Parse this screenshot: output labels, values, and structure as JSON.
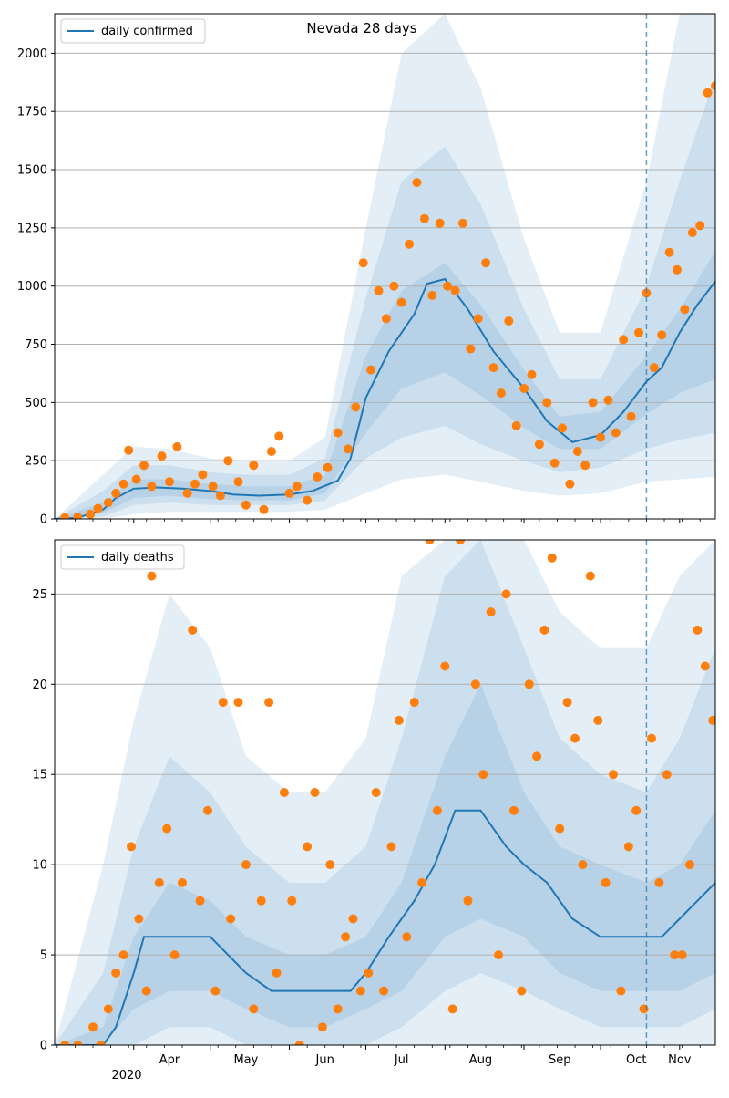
{
  "colors": {
    "line": "#1f77b4",
    "points": "#ff7f0e",
    "band": "#1f77b4",
    "grid": "#b0b0b0",
    "vline": "#1f77b4"
  },
  "months": [
    "Apr",
    "May",
    "Jun",
    "Jul",
    "Aug",
    "Sep",
    "Oct",
    "Nov"
  ],
  "year_label": "2020",
  "chart_data": [
    {
      "type": "line",
      "title": "Nevada 28 days",
      "legend": "daily confirmed",
      "legend_position": "top-left",
      "grid": "y",
      "x_range": [
        "2020-03-01",
        "2020-11-15"
      ],
      "ylim": [
        0,
        2170
      ],
      "yticks": [
        0,
        250,
        500,
        750,
        1000,
        1250,
        1500,
        1750,
        2000
      ],
      "forecast_start": "2020-10-19",
      "series_line": {
        "x": [
          "2020-03-01",
          "2020-03-10",
          "2020-03-20",
          "2020-03-25",
          "2020-04-01",
          "2020-04-10",
          "2020-04-20",
          "2020-05-01",
          "2020-05-10",
          "2020-05-20",
          "2020-06-01",
          "2020-06-10",
          "2020-06-20",
          "2020-06-25",
          "2020-07-01",
          "2020-07-10",
          "2020-07-20",
          "2020-07-25",
          "2020-08-01",
          "2020-08-10",
          "2020-08-20",
          "2020-09-01",
          "2020-09-10",
          "2020-09-20",
          "2020-10-01",
          "2020-10-10",
          "2020-10-19",
          "2020-10-25",
          "2020-11-01",
          "2020-11-08",
          "2020-11-15"
        ],
        "values": [
          0,
          5,
          40,
          90,
          130,
          135,
          130,
          120,
          105,
          100,
          105,
          120,
          165,
          260,
          520,
          720,
          880,
          1010,
          1030,
          900,
          720,
          560,
          420,
          330,
          360,
          460,
          590,
          650,
          800,
          920,
          1020
        ]
      },
      "bands": {
        "x": [
          "2020-03-01",
          "2020-03-20",
          "2020-04-01",
          "2020-04-15",
          "2020-05-01",
          "2020-05-15",
          "2020-06-01",
          "2020-06-15",
          "2020-07-01",
          "2020-07-15",
          "2020-08-01",
          "2020-08-15",
          "2020-09-01",
          "2020-09-15",
          "2020-10-01",
          "2020-10-19",
          "2020-11-01",
          "2020-11-15"
        ],
        "lo_outer": [
          0,
          0,
          20,
          30,
          30,
          30,
          30,
          40,
          110,
          170,
          190,
          160,
          120,
          100,
          110,
          160,
          170,
          180
        ],
        "lo_mid": [
          0,
          10,
          60,
          70,
          60,
          60,
          60,
          80,
          260,
          350,
          400,
          320,
          250,
          200,
          220,
          300,
          340,
          370
        ],
        "lo_in": [
          0,
          25,
          90,
          100,
          85,
          80,
          80,
          110,
          370,
          560,
          630,
          530,
          390,
          300,
          300,
          450,
          540,
          600
        ],
        "hi_in": [
          0,
          70,
          170,
          170,
          150,
          140,
          140,
          190,
          700,
          980,
          1100,
          920,
          640,
          440,
          460,
          700,
          900,
          1150
        ],
        "hi_mid": [
          0,
          120,
          230,
          230,
          200,
          190,
          190,
          260,
          950,
          1450,
          1600,
          1350,
          900,
          600,
          600,
          1000,
          1450,
          1900
        ],
        "hi_outer": [
          0,
          190,
          310,
          300,
          260,
          250,
          250,
          350,
          1250,
          2000,
          2170,
          1850,
          1200,
          800,
          800,
          1450,
          2170,
          2170
        ]
      },
      "points": {
        "x": [
          "2020-03-05",
          "2020-03-10",
          "2020-03-15",
          "2020-03-18",
          "2020-03-22",
          "2020-03-25",
          "2020-03-28",
          "2020-03-30",
          "2020-04-02",
          "2020-04-05",
          "2020-04-08",
          "2020-04-12",
          "2020-04-15",
          "2020-04-18",
          "2020-04-22",
          "2020-04-25",
          "2020-04-28",
          "2020-05-02",
          "2020-05-05",
          "2020-05-08",
          "2020-05-12",
          "2020-05-15",
          "2020-05-18",
          "2020-05-22",
          "2020-05-25",
          "2020-05-28",
          "2020-06-01",
          "2020-06-04",
          "2020-06-08",
          "2020-06-12",
          "2020-06-16",
          "2020-06-20",
          "2020-06-24",
          "2020-06-27",
          "2020-06-30",
          "2020-07-03",
          "2020-07-06",
          "2020-07-09",
          "2020-07-12",
          "2020-07-15",
          "2020-07-18",
          "2020-07-21",
          "2020-07-24",
          "2020-07-27",
          "2020-07-30",
          "2020-08-02",
          "2020-08-05",
          "2020-08-08",
          "2020-08-11",
          "2020-08-14",
          "2020-08-17",
          "2020-08-20",
          "2020-08-23",
          "2020-08-26",
          "2020-08-29",
          "2020-09-01",
          "2020-09-04",
          "2020-09-07",
          "2020-09-10",
          "2020-09-13",
          "2020-09-16",
          "2020-09-19",
          "2020-09-22",
          "2020-09-25",
          "2020-09-28",
          "2020-10-01",
          "2020-10-04",
          "2020-10-07",
          "2020-10-10",
          "2020-10-13",
          "2020-10-16",
          "2020-10-19",
          "2020-10-22",
          "2020-10-25",
          "2020-10-28",
          "2020-10-31",
          "2020-11-03",
          "2020-11-06",
          "2020-11-09",
          "2020-11-12",
          "2020-11-15"
        ],
        "values": [
          5,
          8,
          20,
          45,
          70,
          110,
          150,
          295,
          170,
          230,
          140,
          270,
          160,
          310,
          110,
          150,
          190,
          140,
          100,
          250,
          160,
          60,
          230,
          40,
          290,
          355,
          110,
          140,
          80,
          180,
          220,
          370,
          300,
          480,
          1100,
          640,
          980,
          860,
          1000,
          930,
          1180,
          1445,
          1290,
          960,
          1270,
          1000,
          980,
          1270,
          730,
          860,
          1100,
          650,
          540,
          850,
          400,
          560,
          620,
          320,
          500,
          240,
          390,
          150,
          290,
          230,
          500,
          350,
          510,
          370,
          770,
          440,
          800,
          970,
          650,
          790,
          1145,
          1070,
          900,
          1230,
          1260,
          1830,
          1860
        ]
      }
    },
    {
      "type": "line",
      "title": "",
      "legend": "daily deaths",
      "legend_position": "top-left",
      "grid": "y",
      "x_range": [
        "2020-03-01",
        "2020-11-15"
      ],
      "ylim": [
        0,
        28
      ],
      "yticks": [
        0,
        5,
        10,
        15,
        20,
        25
      ],
      "forecast_start": "2020-10-19",
      "series_line": {
        "x": [
          "2020-03-01",
          "2020-03-20",
          "2020-03-25",
          "2020-04-01",
          "2020-04-05",
          "2020-04-10",
          "2020-04-20",
          "2020-05-01",
          "2020-05-08",
          "2020-05-15",
          "2020-05-25",
          "2020-06-05",
          "2020-06-15",
          "2020-06-25",
          "2020-07-01",
          "2020-07-10",
          "2020-07-20",
          "2020-07-28",
          "2020-08-05",
          "2020-08-15",
          "2020-08-25",
          "2020-09-01",
          "2020-09-10",
          "2020-09-20",
          "2020-10-01",
          "2020-10-10",
          "2020-10-19",
          "2020-10-25",
          "2020-11-01",
          "2020-11-08",
          "2020-11-15"
        ],
        "values": [
          0,
          0,
          1,
          4,
          6,
          6,
          6,
          6,
          5,
          4,
          3,
          3,
          3,
          3,
          4,
          6,
          8,
          10,
          13,
          13,
          11,
          10,
          9,
          7,
          6,
          6,
          6,
          6,
          7,
          8,
          9
        ]
      },
      "bands": {
        "x": [
          "2020-03-01",
          "2020-03-20",
          "2020-04-01",
          "2020-04-15",
          "2020-05-01",
          "2020-05-15",
          "2020-06-01",
          "2020-06-15",
          "2020-07-01",
          "2020-07-15",
          "2020-08-01",
          "2020-08-15",
          "2020-09-01",
          "2020-09-15",
          "2020-10-01",
          "2020-10-19",
          "2020-11-01",
          "2020-11-15"
        ],
        "lo_outer": [
          0,
          0,
          0,
          0,
          0,
          0,
          0,
          0,
          0,
          0,
          0,
          0,
          0,
          0,
          0,
          0,
          0,
          0
        ],
        "lo_mid": [
          0,
          0,
          0,
          1,
          1,
          0,
          0,
          0,
          0,
          1,
          3,
          4,
          3,
          2,
          1,
          1,
          1,
          2
        ],
        "lo_in": [
          0,
          0,
          2,
          3,
          3,
          2,
          1,
          1,
          2,
          3,
          6,
          7,
          6,
          4,
          3,
          3,
          3,
          4
        ],
        "hi_in": [
          0,
          1,
          6,
          9,
          8,
          6,
          5,
          5,
          6,
          9,
          16,
          20,
          14,
          11,
          10,
          9,
          10,
          13
        ],
        "hi_mid": [
          0,
          4,
          11,
          16,
          14,
          11,
          9,
          9,
          11,
          17,
          26,
          28,
          22,
          17,
          15,
          14,
          17,
          22
        ],
        "hi_outer": [
          0,
          10,
          18,
          25,
          22,
          16,
          14,
          14,
          17,
          26,
          28,
          28,
          28,
          24,
          22,
          22,
          26,
          28
        ]
      },
      "points": {
        "x": [
          "2020-03-05",
          "2020-03-10",
          "2020-03-16",
          "2020-03-19",
          "2020-03-22",
          "2020-03-25",
          "2020-03-28",
          "2020-03-31",
          "2020-04-03",
          "2020-04-06",
          "2020-04-08",
          "2020-04-11",
          "2020-04-14",
          "2020-04-17",
          "2020-04-20",
          "2020-04-24",
          "2020-04-27",
          "2020-04-30",
          "2020-05-03",
          "2020-05-06",
          "2020-05-09",
          "2020-05-12",
          "2020-05-15",
          "2020-05-18",
          "2020-05-21",
          "2020-05-24",
          "2020-05-27",
          "2020-05-30",
          "2020-06-02",
          "2020-06-05",
          "2020-06-08",
          "2020-06-11",
          "2020-06-14",
          "2020-06-17",
          "2020-06-20",
          "2020-06-23",
          "2020-06-26",
          "2020-06-29",
          "2020-07-02",
          "2020-07-05",
          "2020-07-08",
          "2020-07-11",
          "2020-07-14",
          "2020-07-17",
          "2020-07-20",
          "2020-07-23",
          "2020-07-26",
          "2020-07-29",
          "2020-08-01",
          "2020-08-04",
          "2020-08-07",
          "2020-08-10",
          "2020-08-13",
          "2020-08-16",
          "2020-08-19",
          "2020-08-22",
          "2020-08-25",
          "2020-08-28",
          "2020-08-31",
          "2020-09-03",
          "2020-09-06",
          "2020-09-09",
          "2020-09-12",
          "2020-09-15",
          "2020-09-18",
          "2020-09-21",
          "2020-09-24",
          "2020-09-27",
          "2020-09-30",
          "2020-10-03",
          "2020-10-06",
          "2020-10-09",
          "2020-10-12",
          "2020-10-15",
          "2020-10-18",
          "2020-10-21",
          "2020-10-24",
          "2020-10-27",
          "2020-10-30",
          "2020-11-02",
          "2020-11-05",
          "2020-11-08",
          "2020-11-11",
          "2020-11-14"
        ],
        "values": [
          0,
          0,
          1,
          0,
          2,
          4,
          5,
          11,
          7,
          3,
          26,
          9,
          12,
          5,
          9,
          23,
          8,
          13,
          3,
          19,
          7,
          19,
          10,
          2,
          8,
          19,
          4,
          14,
          8,
          0,
          11,
          14,
          1,
          10,
          2,
          6,
          7,
          3,
          4,
          14,
          3,
          11,
          18,
          6,
          19,
          9,
          28,
          13,
          21,
          2,
          28,
          8,
          20,
          15,
          24,
          5,
          25,
          13,
          3,
          20,
          16,
          23,
          27,
          12,
          19,
          17,
          10,
          26,
          18,
          9,
          15,
          3,
          11,
          13,
          2,
          17,
          9,
          15,
          5,
          5,
          10,
          23,
          21,
          18
        ]
      }
    }
  ]
}
